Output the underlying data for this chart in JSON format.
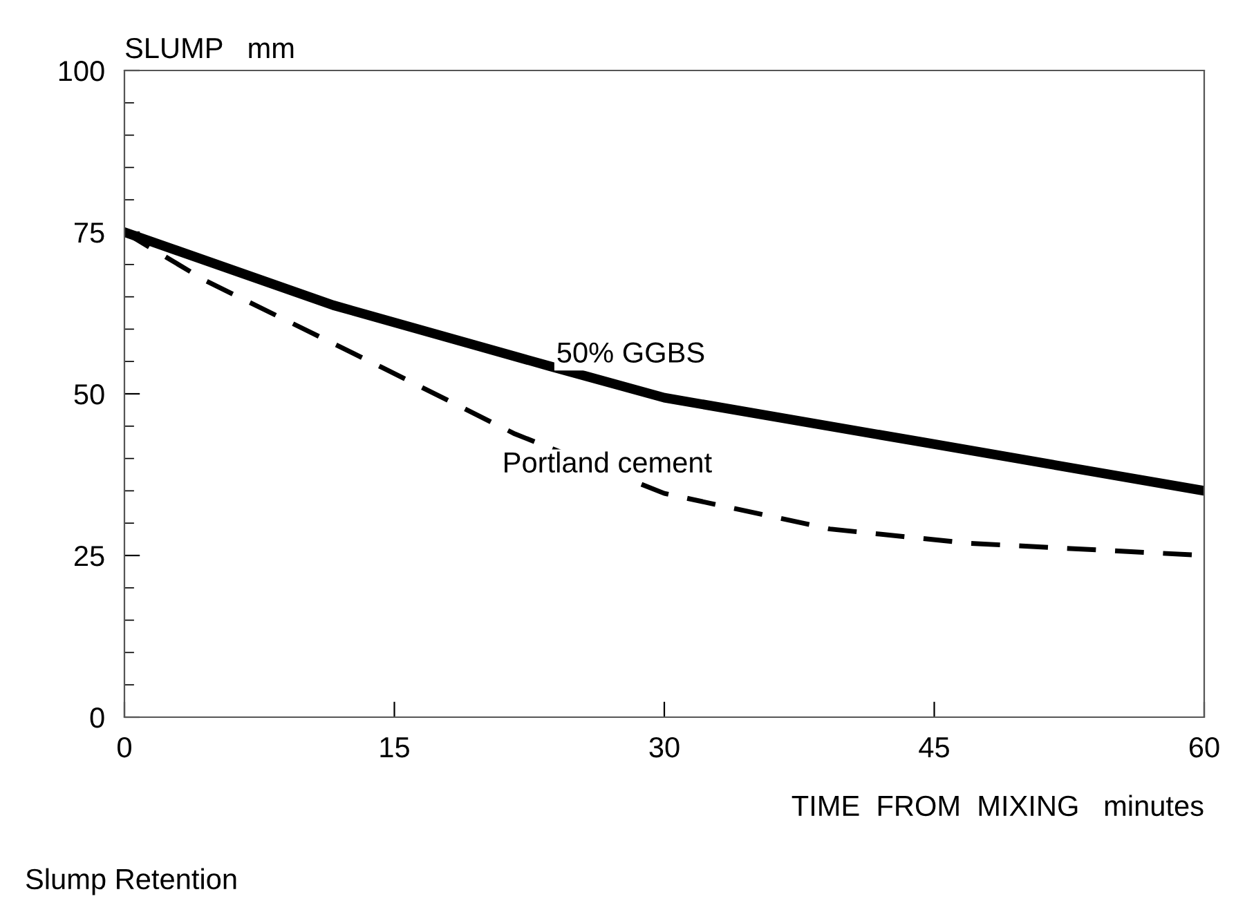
{
  "chart_data": {
    "type": "line",
    "title": "Slump Retention",
    "ylabel": "SLUMP   mm",
    "xlabel": "TIME  FROM  MIXING   minutes",
    "xlim": [
      0,
      60
    ],
    "xticks": [
      0,
      15,
      30,
      45,
      60
    ],
    "ylim": [
      0,
      100
    ],
    "yticks": [
      0,
      25,
      50,
      75,
      100
    ],
    "grid": false,
    "legend": false,
    "series": [
      {
        "name": "50% GGBS",
        "color": "#000000",
        "line_style": "solid",
        "x": [
          0,
          11.6,
          23.6,
          30,
          44.4,
          60
        ],
        "values": [
          75,
          63.7,
          54.3,
          49.4,
          42.5,
          35
        ]
      },
      {
        "name": "Portland cement",
        "color": "#000000",
        "line_style": "dashed",
        "x": [
          0,
          4.5,
          14.3,
          21.7,
          30,
          39.2,
          46.9,
          60
        ],
        "values": [
          75,
          67.5,
          54.1,
          43.8,
          34.6,
          29.1,
          26.9,
          25
        ]
      }
    ]
  }
}
